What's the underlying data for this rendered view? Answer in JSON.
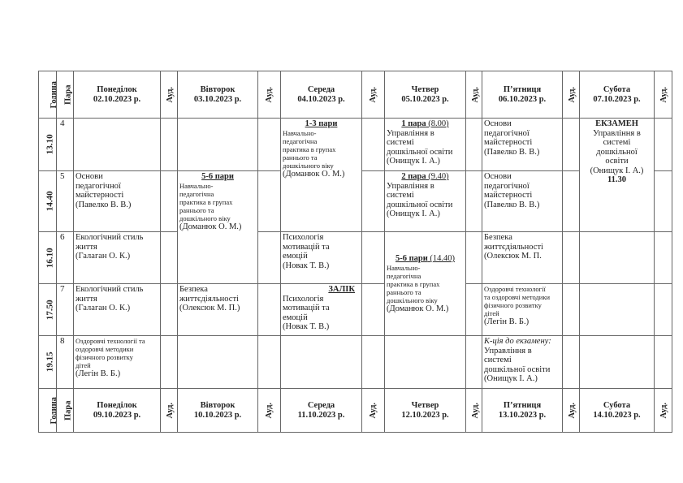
{
  "header_top": {
    "hour": "Година",
    "pair": "Пара",
    "aud": "Ауд.",
    "days": [
      {
        "name": "Понеділок",
        "date": "02.10.2023 р."
      },
      {
        "name": "Вівторок",
        "date": "03.10.2023 р."
      },
      {
        "name": "Середа",
        "date": "04.10.2023 р."
      },
      {
        "name": "Четвер",
        "date": "05.10.2023 р."
      },
      {
        "name": "П’ятниця",
        "date": "06.10.2023 р."
      },
      {
        "name": "Субота",
        "date": "07.10.2023 р."
      }
    ]
  },
  "header_bottom": {
    "hour": "Година",
    "pair": "Пара",
    "aud": "Ауд.",
    "days": [
      {
        "name": "Понеділок",
        "date": "09.10.2023 р."
      },
      {
        "name": "Вівторок",
        "date": "10.10.2023 р."
      },
      {
        "name": "Середа",
        "date": "11.10.2023 р."
      },
      {
        "name": "Четвер",
        "date": "12.10.2023 р."
      },
      {
        "name": "П’ятниця",
        "date": "13.10.2023 р."
      },
      {
        "name": "Субота",
        "date": "14.10.2023 р."
      }
    ]
  },
  "rows": [
    {
      "time": "13.10",
      "pair": "4",
      "cells": [
        {},
        {},
        {
          "rowspan": 2,
          "heading": "1-3 пари",
          "lines": [
            "Навчально-",
            "педагогічна",
            "практика в групах",
            "раннього  та",
            "дошкільного віку"
          ],
          "small": true,
          "teacher": "(Доманюк О. М.)"
        },
        {
          "heading": "1 пара",
          "heading_suffix": " (8.00)",
          "lines": [
            "Управління в",
            "системі",
            "дошкільної освіти"
          ],
          "teacher": "(Онищук І. А.)"
        },
        {
          "lines": [
            "Основи",
            "педагогічної",
            "майстерності"
          ],
          "teacher": "(Павелко В. В.)"
        },
        {
          "rowspan": 2,
          "center": true,
          "bold_heading": "ЕКЗАМЕН",
          "lines": [
            "Управління в",
            "системі",
            "дошкільної",
            "освіти"
          ],
          "teacher": "(Онищук І. А.)",
          "bold_footer": "11.30"
        }
      ]
    },
    {
      "time": "14.40",
      "pair": "5",
      "cells": [
        {
          "lines": [
            "Основи",
            "педагогічної",
            "майстерності"
          ],
          "teacher": "(Павелко В. В.)"
        },
        {
          "rowspan": 2,
          "heading": "5-6 пари",
          "lines": [
            "Навчально-",
            "педагогічна",
            "практика в групах",
            "раннього  та",
            "дошкільного віку"
          ],
          "small": true,
          "teacher": " (Доманюк О. М.)"
        },
        null,
        {
          "heading": "2 пара",
          "heading_suffix": " (9.40)",
          "lines": [
            "Управління в",
            "системі",
            "дошкільної освіти"
          ],
          "teacher": "(Онищук І. А.)"
        },
        {
          "lines": [
            "Основи",
            "педагогічної",
            "майстерності"
          ],
          "teacher": "(Павелко В. В.)"
        },
        null
      ]
    },
    {
      "time": "16.10",
      "pair": "6",
      "cells": [
        {
          "lines": [
            "Екологічний   стиль",
            "життя"
          ],
          "teacher": "(Галаган О. К.)"
        },
        null,
        {
          "lines": [
            "Психологія",
            "мотивацій та",
            "емоцій"
          ],
          "teacher": "(Новак Т. В.)"
        },
        {
          "rowspan": 2,
          "pad": true,
          "heading": "5-6 пари",
          "heading_suffix": " (14.40)",
          "lines": [
            "Навчально-",
            "педагогічна",
            "практика в групах",
            "раннього  та",
            "дошкільного віку"
          ],
          "small": true,
          "teacher": " (Доманюк О. М.)"
        },
        {
          "lines": [
            "Безпека",
            "життєдіяльності"
          ],
          "teacher": "(Олексюк М. П."
        },
        {}
      ]
    },
    {
      "time": "17.50",
      "pair": "7",
      "cells": [
        {
          "lines": [
            "Екологічний   стиль",
            "життя"
          ],
          "teacher": "(Галаган О. К.)"
        },
        {
          "lines": [
            "Безпека",
            "життєдіяльності"
          ],
          "teacher": "(Олексюк М. П.)"
        },
        {
          "heading_right": "ЗАЛІК",
          "lines": [
            "Психологія",
            "мотивацій та",
            "емоцій"
          ],
          "teacher": "(Новак Т. В.)"
        },
        null,
        {
          "tiny": true,
          "lines": [
            "Оздоровчі технології",
            "та оздоровчі методики",
            "фізичного розвитку",
            "дітей"
          ],
          "teacher": "(Легін В. Б.)"
        },
        {}
      ]
    },
    {
      "time": "19.15",
      "pair": "8",
      "cells": [
        {
          "tiny": true,
          "lines": [
            "Оздоровчі технології та",
            "оздоровчі методики",
            "фізичного розвитку",
            "дітей"
          ],
          "teacher": "(Легін В. Б.)"
        },
        {},
        {},
        {},
        {
          "italic_heading": "К-ція до екзамену:",
          "lines": [
            "Управління в",
            "системі",
            "дошкільної освіти"
          ],
          "teacher": " (Онищук І. А.)"
        },
        {}
      ]
    }
  ]
}
